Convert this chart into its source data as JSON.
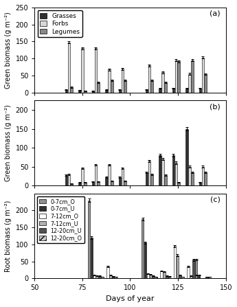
{
  "panel_a": {
    "label": "(a)",
    "ylabel": "Green biomass (g m⁻²)",
    "ylim": [
      0,
      250
    ],
    "yticks": [
      0,
      50,
      100,
      150,
      200,
      250
    ],
    "groups": [
      {
        "x": 68,
        "grasses": 8,
        "forbs": 147,
        "legumes": 15,
        "ge": 1,
        "fe": 3,
        "le": 2
      },
      {
        "x": 75,
        "grasses": 7,
        "forbs": 130,
        "legumes": 5,
        "ge": 1,
        "fe": 3,
        "le": 1
      },
      {
        "x": 82,
        "grasses": 5,
        "forbs": 130,
        "legumes": 30,
        "ge": 1,
        "fe": 3,
        "le": 2
      },
      {
        "x": 89,
        "grasses": 8,
        "forbs": 68,
        "legumes": 35,
        "ge": 1,
        "fe": 3,
        "le": 2
      },
      {
        "x": 96,
        "grasses": 8,
        "forbs": 70,
        "legumes": 35,
        "ge": 1,
        "fe": 3,
        "le": 2
      },
      {
        "x": 110,
        "grasses": 9,
        "forbs": 80,
        "legumes": 35,
        "ge": 1,
        "fe": 3,
        "le": 2
      },
      {
        "x": 117,
        "grasses": 12,
        "forbs": 60,
        "legumes": 30,
        "ge": 1,
        "fe": 3,
        "le": 2
      },
      {
        "x": 124,
        "grasses": 13,
        "forbs": 95,
        "legumes": 92,
        "ge": 1,
        "fe": 3,
        "le": 3
      },
      {
        "x": 131,
        "grasses": 12,
        "forbs": 55,
        "legumes": 95,
        "ge": 1,
        "fe": 3,
        "le": 3
      },
      {
        "x": 138,
        "grasses": 12,
        "forbs": 103,
        "legumes": 55,
        "ge": 1,
        "fe": 3,
        "le": 2
      }
    ],
    "legend_labels": [
      "Grasses",
      "Forbs",
      "Legumes"
    ],
    "colors": [
      "#303030",
      "#d8d8d8",
      "#888888"
    ]
  },
  "panel_b": {
    "label": "(b)",
    "ylabel": "Green biomass (g m⁻²)",
    "ylim": [
      0,
      225
    ],
    "yticks": [
      0,
      50,
      100,
      150,
      200
    ],
    "groups": [
      {
        "x": 68,
        "v1": 27,
        "v2": 30,
        "v3": 5,
        "e1": 2,
        "e2": 2,
        "e3": 1
      },
      {
        "x": 75,
        "v1": 8,
        "v2": 45,
        "v3": 8,
        "e1": 1,
        "e2": 2,
        "e3": 1
      },
      {
        "x": 82,
        "v1": 10,
        "v2": 55,
        "v3": 10,
        "e1": 1,
        "e2": 2,
        "e3": 1
      },
      {
        "x": 89,
        "v1": 22,
        "v2": 55,
        "v3": 12,
        "e1": 2,
        "e2": 2,
        "e3": 1
      },
      {
        "x": 96,
        "v1": 22,
        "v2": 45,
        "v3": 12,
        "e1": 2,
        "e2": 2,
        "e3": 1
      },
      {
        "x": 110,
        "v1": 35,
        "v2": 65,
        "v3": 30,
        "e1": 2,
        "e2": 3,
        "e3": 2
      },
      {
        "x": 117,
        "v1": 80,
        "v2": 70,
        "v3": 27,
        "e1": 3,
        "e2": 3,
        "e3": 2
      },
      {
        "x": 124,
        "v1": 80,
        "v2": 60,
        "v3": 8,
        "e1": 3,
        "e2": 3,
        "e3": 1
      },
      {
        "x": 131,
        "v1": 150,
        "v2": 50,
        "v3": 35,
        "e1": 4,
        "e2": 3,
        "e3": 2
      },
      {
        "x": 138,
        "v1": 8,
        "v2": 50,
        "v3": 35,
        "e1": 1,
        "e2": 3,
        "e3": 2
      }
    ],
    "colors": [
      "#303030",
      "#d8d8d8",
      "#888888"
    ]
  },
  "panel_c": {
    "label": "(c)",
    "ylabel": "Root biomass (g m⁻²)",
    "ylim": [
      0,
      250
    ],
    "yticks": [
      0,
      50,
      100,
      150,
      200
    ],
    "groups": [
      {
        "x": 82,
        "v": [
          230,
          120,
          10,
          8,
          8,
          5
        ],
        "e": [
          5,
          4,
          1,
          1,
          1,
          1
        ]
      },
      {
        "x": 89,
        "v": [
          0,
          0,
          35,
          10,
          7,
          5
        ],
        "e": [
          0,
          0,
          2,
          1,
          1,
          1
        ]
      },
      {
        "x": 110,
        "v": [
          175,
          105,
          15,
          12,
          8,
          5
        ],
        "e": [
          4,
          3,
          1,
          1,
          1,
          1
        ]
      },
      {
        "x": 117,
        "v": [
          0,
          0,
          22,
          20,
          8,
          7
        ],
        "e": [
          0,
          0,
          1,
          1,
          1,
          1
        ]
      },
      {
        "x": 124,
        "v": [
          0,
          0,
          95,
          68,
          10,
          5
        ],
        "e": [
          0,
          0,
          3,
          3,
          1,
          1
        ]
      },
      {
        "x": 131,
        "v": [
          0,
          0,
          35,
          8,
          55,
          10
        ],
        "e": [
          0,
          0,
          2,
          1,
          3,
          1
        ]
      },
      {
        "x": 138,
        "v": [
          55,
          10,
          0,
          0,
          5,
          5
        ],
        "e": [
          2,
          1,
          0,
          0,
          1,
          1
        ]
      }
    ],
    "legend_labels": [
      "0-7cm_O",
      "0-7cm_U",
      "7-12cm_O",
      "7-12cm_U",
      "12-20cm_U",
      "12-20cm_O"
    ],
    "colors": [
      "#909090",
      "#303030",
      "#ffffff",
      "#b0b0b0",
      "#505050",
      "#c8c8c8"
    ],
    "hatches": [
      null,
      null,
      null,
      null,
      null,
      "////"
    ]
  },
  "xlim": [
    50,
    150
  ],
  "xticks": [
    50,
    75,
    100,
    125,
    150
  ],
  "xlabel": "Days of year",
  "bar_width": 1.4,
  "figsize": [
    3.45,
    4.47
  ],
  "dpi": 100
}
